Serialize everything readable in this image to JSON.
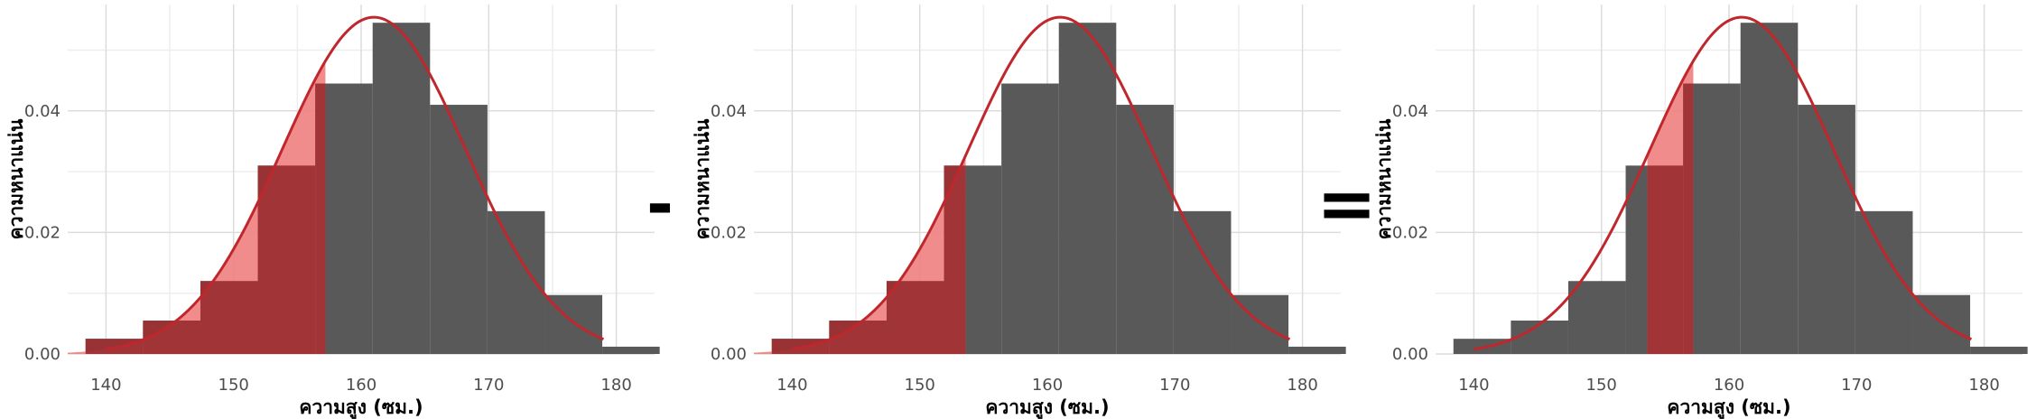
{
  "operators": {
    "minus": "-",
    "equals": "="
  },
  "colors": {
    "bar": "#595959",
    "curve": "#c0272d",
    "shade_dark": "#9c3034",
    "shade_light": "#f08080",
    "grid_major": "#dcdcdc",
    "grid_minor": "#eeeeee",
    "tick_text": "#4d4d4d",
    "label_text": "#000000"
  },
  "chart_data": [
    {
      "type": "bar",
      "xlabel": "ความสูง (ซม.)",
      "ylabel": "ความหนาแน่น",
      "xlim": [
        137,
        183
      ],
      "ylim": [
        0,
        0.0575
      ],
      "xticks": [
        140,
        150,
        160,
        170,
        180
      ],
      "xtick_labels": [
        "140",
        "150",
        "160",
        "170",
        "180"
      ],
      "yticks": [
        0,
        0.02,
        0.04
      ],
      "ytick_labels": [
        "0.00",
        "0.02",
        "0.04"
      ],
      "grid": true,
      "bin_edges": [
        138.4,
        142.9,
        147.4,
        151.9,
        156.4,
        160.9,
        165.4,
        169.9,
        174.4,
        178.9,
        183.4
      ],
      "density": [
        0.0025,
        0.0055,
        0.012,
        0.031,
        0.0445,
        0.0545,
        0.041,
        0.0235,
        0.0097,
        0.0012
      ],
      "normal_curve": {
        "mean": 161,
        "sd": 7.2,
        "x_range": [
          140,
          179
        ]
      },
      "shaded_region": [
        137,
        157.2
      ]
    },
    {
      "type": "bar",
      "xlabel": "ความสูง (ซม.)",
      "ylabel": "ความหนาแน่น",
      "xlim": [
        137,
        183
      ],
      "ylim": [
        0,
        0.0575
      ],
      "xticks": [
        140,
        150,
        160,
        170,
        180
      ],
      "xtick_labels": [
        "140",
        "150",
        "160",
        "170",
        "180"
      ],
      "yticks": [
        0,
        0.02,
        0.04
      ],
      "ytick_labels": [
        "0.00",
        "0.02",
        "0.04"
      ],
      "grid": true,
      "bin_edges": [
        138.4,
        142.9,
        147.4,
        151.9,
        156.4,
        160.9,
        165.4,
        169.9,
        174.4,
        178.9,
        183.4
      ],
      "density": [
        0.0025,
        0.0055,
        0.012,
        0.031,
        0.0445,
        0.0545,
        0.041,
        0.0235,
        0.0097,
        0.0012
      ],
      "normal_curve": {
        "mean": 161,
        "sd": 7.2,
        "x_range": [
          140,
          179
        ]
      },
      "shaded_region": [
        137,
        153.6
      ]
    },
    {
      "type": "bar",
      "xlabel": "ความสูง (ซม.)",
      "ylabel": "ความหนาแน่น",
      "xlim": [
        137,
        183
      ],
      "ylim": [
        0,
        0.0575
      ],
      "xticks": [
        140,
        150,
        160,
        170,
        180
      ],
      "xtick_labels": [
        "140",
        "150",
        "160",
        "170",
        "180"
      ],
      "yticks": [
        0,
        0.02,
        0.04
      ],
      "ytick_labels": [
        "0.00",
        "0.02",
        "0.04"
      ],
      "grid": true,
      "bin_edges": [
        138.4,
        142.9,
        147.4,
        151.9,
        156.4,
        160.9,
        165.4,
        169.9,
        174.4,
        178.9,
        183.4
      ],
      "density": [
        0.0025,
        0.0055,
        0.012,
        0.031,
        0.0445,
        0.0545,
        0.041,
        0.0235,
        0.0097,
        0.0012
      ],
      "normal_curve": {
        "mean": 161,
        "sd": 7.2,
        "x_range": [
          140,
          179
        ]
      },
      "shaded_region": [
        153.6,
        157.2
      ]
    }
  ]
}
